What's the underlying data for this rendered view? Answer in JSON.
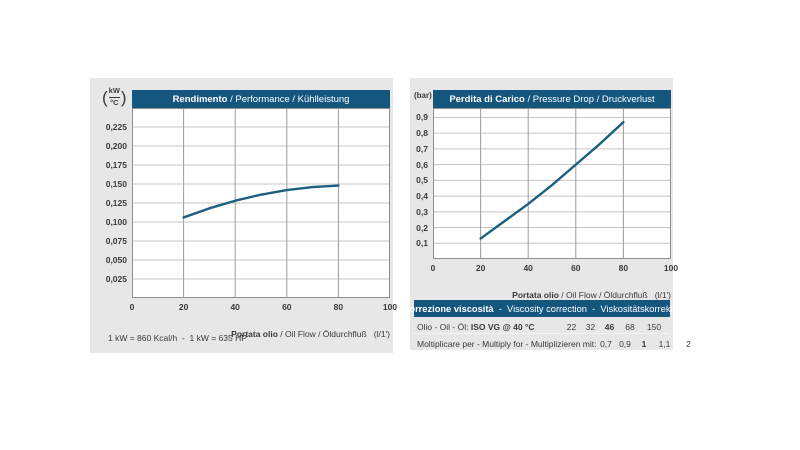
{
  "colors": {
    "page_bg": "#ffffff",
    "panel_bg": "#e7e7e7",
    "header_bg": "#15567f",
    "header_text": "#ffffff",
    "curve": "#1c5f80",
    "grid_h": "#c6c6c6",
    "grid_v": "#9b9b9b",
    "plot_border": "#8f8f8f",
    "text": "#3a3a3a"
  },
  "left_panel": {
    "y_unit_open": "(",
    "y_unit_top": "kW",
    "y_unit_bottom": "°C",
    "y_unit_close": ")",
    "title_bold": "Rendimento",
    "title_rest": " / Performance / Kühlleistung",
    "x_label_bold": "Portata olio",
    "x_label_rest": " / Oil Flow / Öldurchfluß",
    "x_unit": "(l/1')",
    "footnote": "1 kW = 860 Kcal/h  -  1 kW = 635 HP"
  },
  "right_panel": {
    "y_unit": "(bar)",
    "title_bold": "Perdita di Carico",
    "title_rest": " / Pressure Drop / Druckverlust",
    "x_label_bold": "Portata olio",
    "x_label_rest": " / Oil Flow / Öldurchfluß",
    "x_unit": "(l/1')"
  },
  "viscosity_table": {
    "header_bold": "Correzione viscosità",
    "header_rest": "  -  Viscosity correction  -  Viskositätskorrektur",
    "rows": [
      {
        "label_plain": "Olio - Oil - Öl: ",
        "label_bold": "ISO VG @ 40 °C",
        "values": [
          "22",
          "32",
          "46",
          "68",
          "150"
        ],
        "bold_index": 2
      },
      {
        "label_plain": "Moltiplicare per - Multiply for - Multiplizieren mit:",
        "label_bold": "",
        "values": [
          "0,7",
          "0,9",
          "1",
          "1,1",
          "2"
        ],
        "bold_index": 2
      }
    ]
  },
  "chart_data": [
    {
      "type": "line",
      "title": "Rendimento / Performance / Kühlleistung",
      "xlabel": "Portata olio / Oil Flow / Öldurchfluß (l/1')",
      "ylabel": "kW/°C",
      "xlim": [
        0,
        100
      ],
      "ylim": [
        0,
        0.25
      ],
      "grid": true,
      "legend": "none",
      "xticks": [
        0,
        20,
        40,
        60,
        80,
        100
      ],
      "xtick_labels": [
        "0",
        "20",
        "40",
        "60",
        "80",
        "100"
      ],
      "yticks": [
        0.025,
        0.05,
        0.075,
        0.1,
        0.125,
        0.15,
        0.175,
        0.2,
        0.225
      ],
      "ytick_labels": [
        "0,025",
        "0,050",
        "0,075",
        "0,100",
        "0,125",
        "0,150",
        "0,175",
        "0,200",
        "0,225"
      ],
      "x": [
        20,
        30,
        40,
        50,
        60,
        70,
        80
      ],
      "y": [
        0.106,
        0.118,
        0.128,
        0.136,
        0.142,
        0.146,
        0.148
      ]
    },
    {
      "type": "line",
      "title": "Perdita di Carico / Pressure Drop / Druckverlust",
      "xlabel": "Portata olio / Oil Flow / Öldurchfluß (l/1')",
      "ylabel": "bar",
      "xlim": [
        0,
        100
      ],
      "ylim": [
        0,
        0.96
      ],
      "grid": true,
      "legend": "none",
      "xticks": [
        0,
        20,
        40,
        60,
        80,
        100
      ],
      "xtick_labels": [
        "0",
        "20",
        "40",
        "60",
        "80",
        "100"
      ],
      "yticks": [
        0.1,
        0.2,
        0.3,
        0.4,
        0.5,
        0.6,
        0.7,
        0.8,
        0.9
      ],
      "ytick_labels": [
        "0,1",
        "0,2",
        "0,3",
        "0,4",
        "0,5",
        "0,6",
        "0,7",
        "0,8",
        "0,9"
      ],
      "x": [
        20,
        30,
        40,
        50,
        60,
        70,
        80
      ],
      "y": [
        0.13,
        0.24,
        0.35,
        0.47,
        0.6,
        0.73,
        0.87
      ]
    }
  ]
}
